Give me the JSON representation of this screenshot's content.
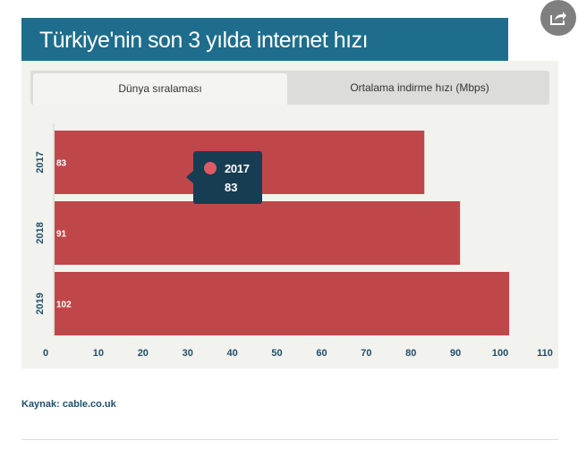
{
  "title": "Türkiye'nin son 3 yılda internet hızı",
  "tabs": [
    {
      "label": "Dünya sıralaması",
      "active": true
    },
    {
      "label": "Ortalama indirme hızı (Mbps)",
      "active": false
    }
  ],
  "tooltip": {
    "label": "2017",
    "value": "83",
    "color": "#e05a63"
  },
  "source": {
    "prefix": "Kaynak:",
    "text": "cable.co.uk"
  },
  "colors": {
    "title_bg": "#1f6d8c",
    "bar": "#bf474a",
    "axis_text": "#1f4f6b"
  },
  "share_icon": "share-icon",
  "chart_data": {
    "type": "bar",
    "orientation": "horizontal",
    "categories": [
      "2017",
      "2018",
      "2019"
    ],
    "values": [
      83,
      91,
      102
    ],
    "xlim": [
      0,
      110
    ],
    "xticks": [
      0,
      10,
      20,
      30,
      40,
      50,
      60,
      70,
      80,
      90,
      100,
      110
    ],
    "grid": false
  }
}
